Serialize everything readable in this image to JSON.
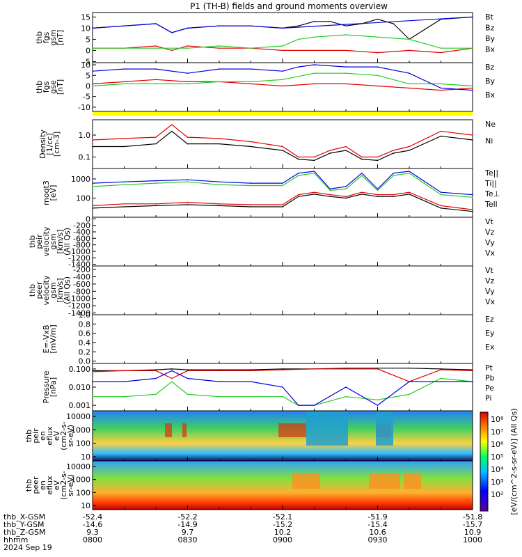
{
  "title": "P1 (TH-B) fields and ground moments overview",
  "colors": {
    "black": "#000000",
    "red": "#e00000",
    "green": "#22cc22",
    "blue": "#0000dd",
    "yellow": "#ffff00"
  },
  "chart_data": [
    {
      "id": "fgs_mag",
      "type": "line",
      "ylabel": [
        "thb",
        "fgs",
        "gsm",
        "[nT]"
      ],
      "yticks": [
        "15",
        "10",
        "5",
        "0",
        "-5"
      ],
      "ylim": [
        -5.5,
        17
      ],
      "series": [
        {
          "name": "Bt",
          "color": "#000000",
          "x": [
            "0800",
            "0810",
            "0820",
            "0825",
            "0830",
            "0840",
            "0850",
            "0900",
            "0905",
            "0910",
            "0915",
            "0920",
            "0925",
            "0930",
            "0935",
            "0940",
            "0950",
            "1000"
          ],
          "values": [
            10,
            11,
            12,
            8,
            10,
            11,
            11,
            10,
            11,
            13,
            13,
            11,
            12,
            14,
            12,
            5,
            14,
            15
          ]
        },
        {
          "name": "Bz",
          "color": "#e00000",
          "x": [
            "0800",
            "0810",
            "0820",
            "0825",
            "0830",
            "0840",
            "0850",
            "0900",
            "0910",
            "0920",
            "0930",
            "0940",
            "0950",
            "1000"
          ],
          "values": [
            1,
            1,
            2,
            0,
            2,
            1,
            1,
            0,
            0,
            0,
            -1,
            0,
            -1,
            1
          ]
        },
        {
          "name": "By",
          "color": "#22cc22",
          "x": [
            "0800",
            "0810",
            "0820",
            "0830",
            "0840",
            "0850",
            "0900",
            "0905",
            "0910",
            "0920",
            "0930",
            "0940",
            "0950",
            "1000"
          ],
          "values": [
            1,
            1,
            1,
            1,
            2,
            1,
            2,
            5,
            6,
            7,
            6,
            5,
            1,
            1
          ]
        },
        {
          "name": "Bx",
          "color": "#0000dd",
          "x": [
            "0800",
            "0810",
            "0820",
            "0825",
            "0830",
            "0840",
            "0850",
            "0900",
            "1000"
          ],
          "values": [
            10,
            11,
            12,
            8,
            10,
            11,
            11,
            10,
            15
          ]
        }
      ]
    },
    {
      "id": "fgs_gse",
      "type": "line",
      "ylabel": [
        "thb",
        "fgs",
        "gse",
        "[nT]"
      ],
      "yticks": [
        "10",
        "5",
        "0",
        "-5",
        "-10"
      ],
      "ylim": [
        -12,
        11
      ],
      "series": [
        {
          "name": "Bz",
          "color": "#e00000",
          "x": [
            "0800",
            "0810",
            "0820",
            "0830",
            "0840",
            "0850",
            "0900",
            "0910",
            "0920",
            "0930",
            "0940",
            "0950",
            "1000"
          ],
          "values": [
            1,
            2,
            3,
            2,
            2,
            1,
            0,
            1,
            1,
            0,
            -1,
            -2,
            -1
          ]
        },
        {
          "name": "By",
          "color": "#22cc22",
          "x": [
            "0800",
            "0810",
            "0820",
            "0830",
            "0840",
            "0850",
            "0900",
            "0910",
            "0920",
            "0930",
            "0940",
            "0950",
            "1000"
          ],
          "values": [
            0,
            1,
            1,
            1,
            2,
            2,
            3,
            6,
            6,
            5,
            1,
            1,
            0
          ]
        },
        {
          "name": "Bx",
          "color": "#0000dd",
          "x": [
            "0800",
            "0810",
            "0820",
            "0830",
            "0840",
            "0850",
            "0900",
            "0905",
            "0910",
            "0920",
            "0930",
            "0940",
            "0950",
            "1000"
          ],
          "values": [
            7,
            8,
            8,
            6,
            8,
            8,
            7,
            9,
            10,
            9,
            9,
            6,
            -1,
            -2
          ]
        }
      ]
    },
    {
      "id": "density",
      "type": "line",
      "ylabel": [
        "Density",
        "[1/cc]",
        "[cm-3]"
      ],
      "yticks": [
        "1.0",
        "0.1"
      ],
      "yscale": "log",
      "ylim": [
        0.03,
        5
      ],
      "series": [
        {
          "name": "Ne",
          "color": "#e00000",
          "x": [
            "0800",
            "0810",
            "0820",
            "0825",
            "0830",
            "0840",
            "0850",
            "0900",
            "0905",
            "0910",
            "0915",
            "0920",
            "0925",
            "0930",
            "0935",
            "0940",
            "0950",
            "1000"
          ],
          "values": [
            0.6,
            0.7,
            0.8,
            3,
            0.8,
            0.7,
            0.5,
            0.3,
            0.1,
            0.1,
            0.2,
            0.3,
            0.1,
            0.1,
            0.2,
            0.3,
            1.5,
            1.0
          ]
        },
        {
          "name": "Ni",
          "color": "#000000",
          "x": [
            "0800",
            "0810",
            "0820",
            "0825",
            "0830",
            "0840",
            "0850",
            "0900",
            "0905",
            "0910",
            "0915",
            "0920",
            "0925",
            "0930",
            "0935",
            "0940",
            "0950",
            "1000"
          ],
          "values": [
            0.3,
            0.3,
            0.4,
            1.5,
            0.4,
            0.4,
            0.3,
            0.2,
            0.08,
            0.07,
            0.15,
            0.2,
            0.08,
            0.07,
            0.15,
            0.2,
            0.9,
            0.6
          ]
        }
      ]
    },
    {
      "id": "temperature",
      "type": "line",
      "ylabel": [
        "moqt3",
        "[eV]"
      ],
      "yticks": [
        "1000",
        "100"
      ],
      "yscale": "log",
      "ylim": [
        10,
        3500
      ],
      "series": [
        {
          "name": "Te||",
          "color": "#0000dd",
          "x": [
            "0800",
            "0810",
            "0820",
            "0830",
            "0840",
            "0850",
            "0900",
            "0905",
            "0910",
            "0915",
            "0920",
            "0925",
            "0930",
            "0935",
            "0940",
            "0950",
            "1000"
          ],
          "values": [
            600,
            700,
            800,
            900,
            700,
            600,
            600,
            2000,
            2500,
            300,
            400,
            2000,
            300,
            2000,
            2500,
            200,
            150
          ]
        },
        {
          "name": "Ti||",
          "color": "#22cc22",
          "x": [
            "0800",
            "0810",
            "0820",
            "0830",
            "0840",
            "0850",
            "0900",
            "0905",
            "0910",
            "0915",
            "0920",
            "0925",
            "0930",
            "0935",
            "0940",
            "0950",
            "1000"
          ],
          "values": [
            400,
            500,
            600,
            700,
            500,
            450,
            450,
            1500,
            2000,
            250,
            300,
            1500,
            250,
            1500,
            2000,
            150,
            110
          ]
        },
        {
          "name": "Te⊥",
          "color": "#e00000",
          "x": [
            "0800",
            "0810",
            "0820",
            "0830",
            "0840",
            "0850",
            "0900",
            "0905",
            "0910",
            "0915",
            "0920",
            "0925",
            "0930",
            "0935",
            "0940",
            "0950",
            "1000"
          ],
          "values": [
            40,
            50,
            50,
            60,
            50,
            45,
            45,
            150,
            200,
            150,
            120,
            200,
            150,
            150,
            200,
            40,
            25
          ]
        },
        {
          "name": "Tell",
          "color": "#000000",
          "x": [
            "0800",
            "0810",
            "0820",
            "0830",
            "0840",
            "0850",
            "0900",
            "0905",
            "0910",
            "0915",
            "0920",
            "0925",
            "0930",
            "0935",
            "0940",
            "0950",
            "1000"
          ],
          "values": [
            30,
            35,
            40,
            45,
            40,
            35,
            35,
            120,
            160,
            120,
            100,
            160,
            120,
            120,
            160,
            30,
            20
          ]
        }
      ]
    },
    {
      "id": "peir_velocity",
      "type": "line",
      "ylabel": [
        "thb",
        "peir",
        "velocity",
        "gsm",
        "[km/s]",
        "(All Qs)"
      ],
      "yticks": [
        "0",
        "-200",
        "-400",
        "-600",
        "-800",
        "-1000",
        "-1200",
        "-1400"
      ],
      "ylim": [
        -1450,
        50
      ],
      "series": []
    },
    {
      "id": "peer_velocity",
      "type": "line",
      "ylabel": [
        "thb",
        "peer",
        "velocity",
        "gsm",
        "[km/s]",
        "(All Qs)"
      ],
      "yticks": [
        "-200",
        "-400",
        "-600",
        "-800",
        "-1000",
        "-1200",
        "-1400"
      ],
      "ylim": [
        -1450,
        -100
      ],
      "series": []
    },
    {
      "id": "efield",
      "type": "line",
      "ylabel": [
        "E=-VxB",
        "[mV/m]"
      ],
      "yticks": [
        "1.0",
        "0.8",
        "0.6",
        "0.4",
        "0.2",
        "0.0"
      ],
      "ylim": [
        -0.05,
        1.0
      ],
      "series": []
    },
    {
      "id": "pressure",
      "type": "line",
      "ylabel": [
        "Pressure",
        "[nPa]"
      ],
      "yticks": [
        "0.100",
        "0.010",
        "0.001"
      ],
      "yscale": "log",
      "ylim": [
        0.0005,
        0.2
      ],
      "series": [
        {
          "name": "Pt",
          "color": "#000000",
          "x": [
            "0800",
            "0810",
            "0820",
            "0825",
            "0830",
            "0840",
            "0850",
            "0900",
            "0910",
            "0920",
            "0930",
            "0940",
            "0950",
            "1000"
          ],
          "values": [
            0.08,
            0.08,
            0.09,
            0.1,
            0.09,
            0.09,
            0.09,
            0.1,
            0.1,
            0.11,
            0.11,
            0.11,
            0.1,
            0.09
          ]
        },
        {
          "name": "Pb",
          "color": "#e00000",
          "x": [
            "0800",
            "0810",
            "0820",
            "0825",
            "0830",
            "0840",
            "0850",
            "0900",
            "0910",
            "0920",
            "0930",
            "0940",
            "0950",
            "1000"
          ],
          "values": [
            0.07,
            0.08,
            0.08,
            0.03,
            0.08,
            0.08,
            0.08,
            0.09,
            0.1,
            0.1,
            0.1,
            0.02,
            0.09,
            0.08
          ]
        },
        {
          "name": "Pe",
          "color": "#22cc22",
          "x": [
            "0800",
            "0810",
            "0820",
            "0825",
            "0830",
            "0840",
            "0850",
            "0900",
            "0905",
            "0910",
            "0920",
            "0930",
            "0940",
            "0950",
            "1000"
          ],
          "values": [
            0.003,
            0.003,
            0.004,
            0.02,
            0.004,
            0.003,
            0.003,
            0.003,
            0.001,
            0.001,
            0.003,
            0.002,
            0.004,
            0.03,
            0.02
          ]
        },
        {
          "name": "Pi",
          "color": "#0000dd",
          "x": [
            "0800",
            "0810",
            "0820",
            "0825",
            "0830",
            "0840",
            "0850",
            "0900",
            "0905",
            "0910",
            "0920",
            "0930",
            "0940",
            "0950",
            "1000"
          ],
          "values": [
            0.02,
            0.02,
            0.03,
            0.08,
            0.03,
            0.02,
            0.02,
            0.01,
            0.001,
            0.001,
            0.01,
            0.001,
            0.02,
            0.02,
            0.02
          ]
        }
      ]
    },
    {
      "id": "peir_spectrogram",
      "type": "heatmap",
      "ylabel": [
        "thb",
        "peir",
        "en",
        "eflux",
        "eV",
        "(cm2-s-",
        "sr-eV)"
      ],
      "yticks": [
        "10000",
        "1000",
        "100",
        "10"
      ],
      "yscale": "log"
    },
    {
      "id": "peer_spectrogram",
      "type": "heatmap",
      "ylabel": [
        "thb",
        "peer",
        "en",
        "eflux",
        "eV",
        "(cm2-s-",
        "sr-eV)"
      ],
      "yticks": [
        "10000",
        "1000",
        "100",
        "10"
      ],
      "yscale": "log"
    }
  ],
  "colorbar": {
    "ticks": [
      "10⁸",
      "10⁷",
      "10⁶",
      "10⁵",
      "10⁴",
      "10³",
      "10²"
    ],
    "label": "[eV/(cm^2-s-sr-eV)] (All Qs)"
  },
  "xaxis": {
    "rows": [
      {
        "label": "thb_X-GSM",
        "values": [
          "-52.4",
          "-52.2",
          "-52.1",
          "-51.9",
          "-51.8"
        ]
      },
      {
        "label": "thb_Y-GSM",
        "values": [
          "-14.6",
          "-14.9",
          "-15.2",
          "-15.4",
          "-15.7"
        ]
      },
      {
        "label": "thb_Z-GSM",
        "values": [
          "9.3",
          "9.7",
          "10.2",
          "10.6",
          "10.9"
        ]
      },
      {
        "label": "hhmm",
        "values": [
          "0800",
          "0830",
          "0900",
          "0930",
          "1000"
        ]
      }
    ],
    "date": "2024 Sep 19"
  }
}
